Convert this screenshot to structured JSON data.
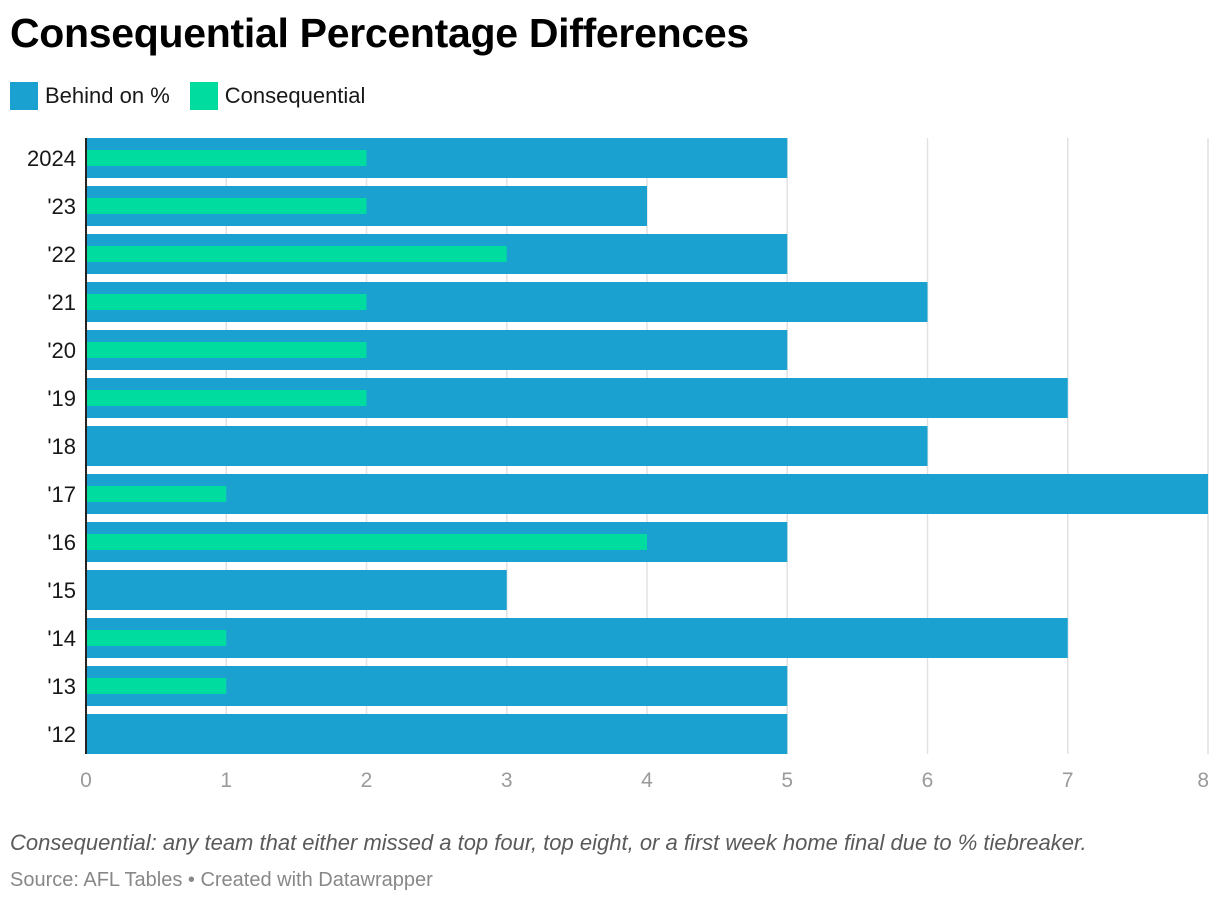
{
  "colors": {
    "primary": "#1ba1cf",
    "secondary": "#00dca0",
    "grid": "#e2e2e2",
    "axis": "#222222",
    "tick_text": "#9a9a9a",
    "category_text": "#181818"
  },
  "chart_data": {
    "type": "bar",
    "orientation": "horizontal",
    "title": "Consequential Percentage Differences",
    "categories": [
      "2024",
      "'23",
      "'22",
      "'21",
      "'20",
      "'19",
      "'18",
      "'17",
      "'16",
      "'15",
      "'14",
      "'13",
      "'12"
    ],
    "series": [
      {
        "name": "Behind on %",
        "color": "#1ba1cf",
        "values": [
          5,
          4,
          5,
          6,
          5,
          7,
          6,
          8,
          5,
          3,
          7,
          5,
          5
        ]
      },
      {
        "name": "Consequential",
        "color": "#00dca0",
        "values": [
          2,
          2,
          3,
          2,
          2,
          2,
          0,
          1,
          4,
          0,
          1,
          1,
          0
        ]
      }
    ],
    "xlim": [
      0,
      8
    ],
    "xticks": [
      "0",
      "1",
      "2",
      "3",
      "4",
      "5",
      "6",
      "7",
      "8"
    ],
    "grid": true,
    "legend_position": "top-left",
    "note": "Consequential: any team that either missed a top four, top eight, or a first week home final due to % tiebreaker.",
    "source": "Source: AFL Tables • Created with Datawrapper"
  }
}
